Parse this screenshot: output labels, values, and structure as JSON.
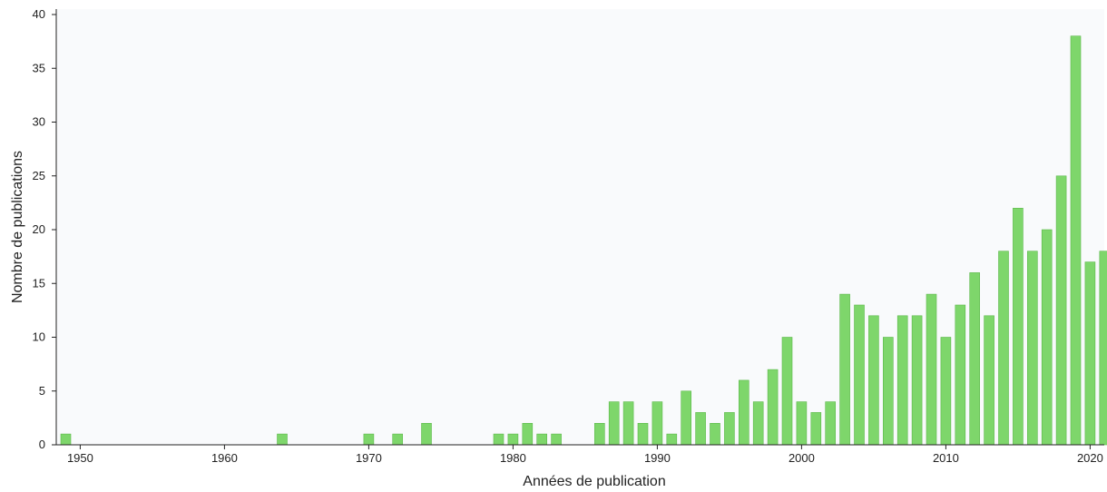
{
  "chart_data": {
    "type": "bar",
    "title": "",
    "xlabel": "Années de publication",
    "ylabel": "Nombre de publications",
    "ylim": [
      0,
      40
    ],
    "xlim": [
      1949,
      2021
    ],
    "yticks": [
      0,
      5,
      10,
      15,
      20,
      25,
      30,
      35,
      40
    ],
    "xticks": [
      1950,
      1960,
      1970,
      1980,
      1990,
      2000,
      2010,
      2020
    ],
    "grid": false,
    "legend": "none",
    "colors": {
      "bar": "#7ed66b",
      "bar_edge": "#5cb84a",
      "plot_bg": "#f9fafc",
      "axis": "#222222"
    },
    "x": [
      1949,
      1964,
      1970,
      1972,
      1974,
      1979,
      1980,
      1981,
      1982,
      1983,
      1986,
      1987,
      1988,
      1989,
      1990,
      1991,
      1992,
      1993,
      1994,
      1995,
      1996,
      1997,
      1998,
      1999,
      2000,
      2001,
      2002,
      2003,
      2004,
      2005,
      2006,
      2007,
      2008,
      2009,
      2010,
      2011,
      2012,
      2013,
      2014,
      2015,
      2016,
      2017,
      2018,
      2019,
      2020,
      2021
    ],
    "values": [
      1,
      1,
      1,
      1,
      2,
      1,
      1,
      2,
      1,
      1,
      2,
      4,
      4,
      2,
      4,
      1,
      5,
      3,
      2,
      3,
      6,
      4,
      7,
      10,
      4,
      3,
      4,
      14,
      13,
      12,
      10,
      12,
      12,
      14,
      10,
      13,
      16,
      12,
      18,
      22,
      18,
      20,
      25,
      38,
      17,
      18
    ]
  }
}
